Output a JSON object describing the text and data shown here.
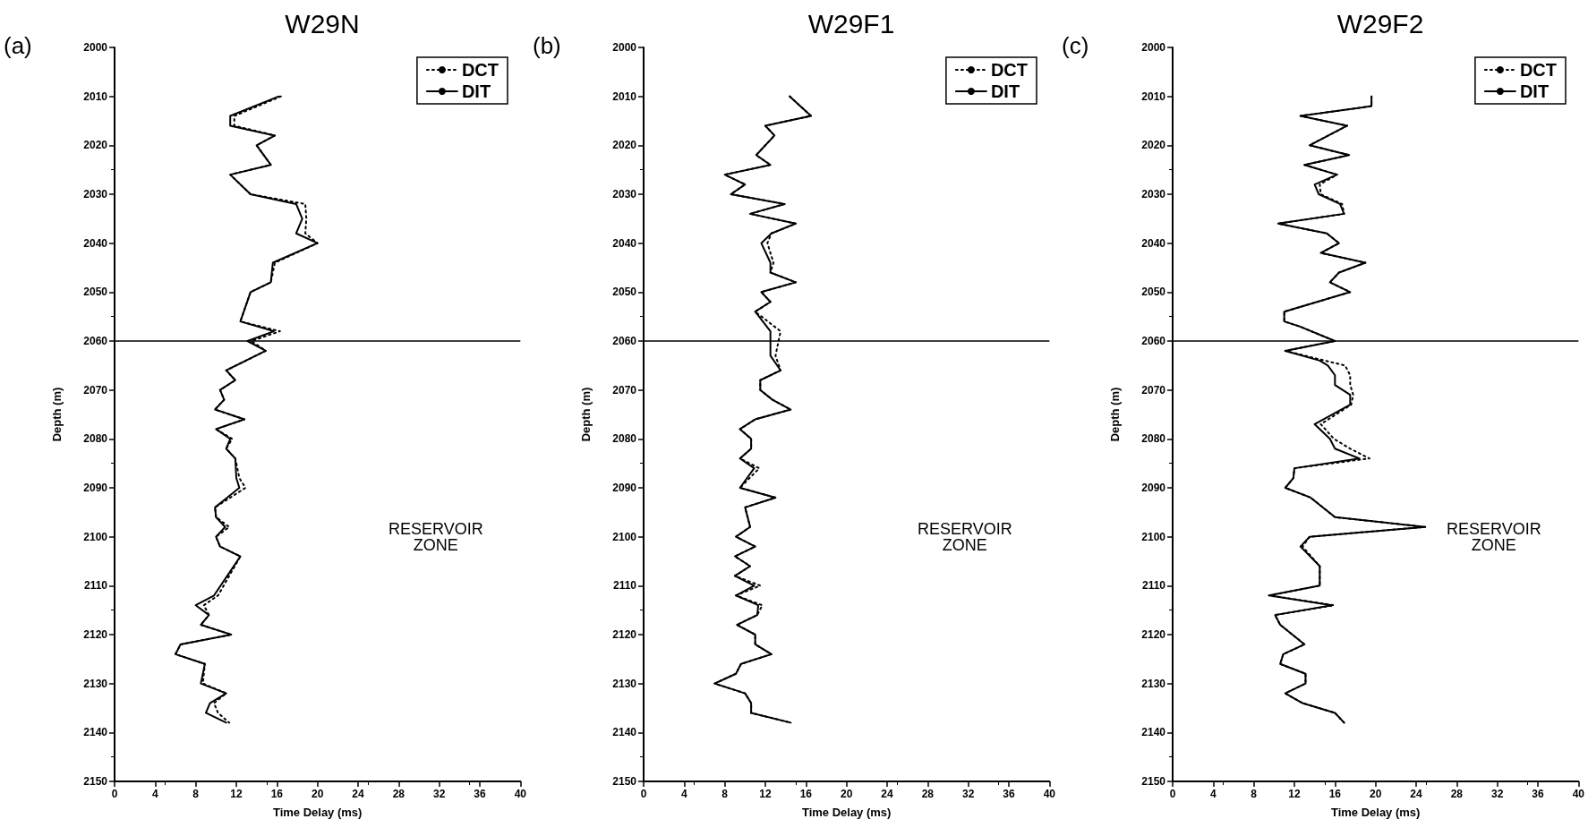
{
  "chart_data": [
    {
      "type": "line",
      "title": "W29N",
      "xlabel": "Time Delay (ms)",
      "ylabel": "Depth (m)",
      "orientation": "horizontal",
      "x": [
        2010,
        2014,
        2016,
        2018,
        2020,
        2024,
        2026,
        2030,
        2032,
        2035,
        2038,
        2040,
        2044,
        2048,
        2050,
        2056,
        2058,
        2060,
        2062,
        2066,
        2068,
        2070,
        2072,
        2074,
        2076,
        2078,
        2080,
        2082,
        2084,
        2088,
        2090,
        2094,
        2096,
        2098,
        2100,
        2102,
        2104,
        2112,
        2114,
        2116,
        2118,
        2120,
        2122,
        2124,
        2126,
        2130,
        2132,
        2134,
        2136,
        2138
      ],
      "series": [
        {
          "name": "DCT",
          "color": "#000000",
          "line_style": "dotted",
          "values": [
            16.4,
            11.8,
            11.8,
            15.8,
            14.0,
            15.4,
            11.4,
            13.4,
            18.8,
            18.9,
            18.8,
            20.0,
            15.8,
            15.4,
            13.4,
            12.4,
            16.3,
            13.5,
            14.9,
            11.0,
            11.9,
            10.4,
            10.8,
            9.9,
            12.8,
            10.0,
            11.6,
            11.0,
            11.9,
            12.3,
            12.9,
            9.9,
            10.0,
            11.3,
            10.0,
            10.4,
            12.4,
            10.2,
            8.8,
            9.3,
            8.5,
            11.5,
            6.5,
            6.0,
            8.9,
            8.7,
            11.0,
            9.8,
            10.2,
            11.3
          ]
        },
        {
          "name": "DIT",
          "color": "#000000",
          "line_style": "solid",
          "values": [
            16.2,
            11.4,
            11.4,
            15.8,
            14.0,
            15.4,
            11.4,
            13.4,
            17.9,
            18.5,
            17.9,
            20.0,
            15.6,
            15.4,
            13.4,
            12.4,
            15.7,
            13.1,
            14.9,
            11.0,
            11.9,
            10.4,
            10.8,
            9.9,
            12.8,
            10.0,
            11.4,
            11.0,
            11.9,
            12.0,
            12.3,
            9.9,
            10.0,
            10.9,
            10.0,
            10.4,
            12.4,
            9.8,
            8.0,
            9.3,
            8.5,
            11.5,
            6.5,
            6.0,
            8.9,
            8.5,
            11.0,
            9.4,
            9.0,
            11.0
          ]
        }
      ],
      "xlim": [
        0,
        40
      ],
      "xticks": [
        0,
        4,
        8,
        12,
        16,
        20,
        24,
        28,
        32,
        36,
        40
      ],
      "ylim": [
        2150,
        2000
      ],
      "yticks": [
        2000,
        2010,
        2020,
        2030,
        2040,
        2050,
        2060,
        2070,
        2080,
        2090,
        2100,
        2110,
        2120,
        2130,
        2140,
        2150
      ],
      "ref_lines": [
        {
          "axis": "y",
          "value": 2060,
          "color": "#000000"
        }
      ],
      "annotations": [
        "(a)",
        "RESERVOIR\nZONE"
      ],
      "legend": "top right",
      "marker": "none",
      "grid": false
    },
    {
      "type": "line",
      "title": "W29F1",
      "xlabel": "Time Delay (ms)",
      "ylabel": "Depth (m)",
      "orientation": "horizontal",
      "x": [
        2010,
        2014,
        2016,
        2018,
        2022,
        2024,
        2026,
        2028,
        2030,
        2032,
        2034,
        2036,
        2038,
        2040,
        2044,
        2046,
        2048,
        2050,
        2052,
        2054,
        2058,
        2063,
        2066,
        2068,
        2070,
        2072,
        2074,
        2076,
        2078,
        2080,
        2082,
        2084,
        2086,
        2090,
        2092,
        2094,
        2098,
        2100,
        2102,
        2104,
        2106,
        2108,
        2110,
        2112,
        2114,
        2116,
        2118,
        2120,
        2122,
        2124,
        2126,
        2128,
        2130,
        2132,
        2134,
        2136,
        2138
      ],
      "series": [
        {
          "name": "DCT",
          "color": "#000000",
          "line_style": "dotted",
          "values": [
            14.4,
            16.5,
            12.0,
            12.9,
            11.1,
            12.5,
            8.0,
            10.0,
            8.6,
            13.9,
            10.5,
            15.0,
            12.6,
            12.2,
            12.8,
            12.5,
            15.0,
            11.6,
            12.5,
            11.0,
            13.5,
            13.0,
            13.5,
            11.5,
            11.5,
            12.7,
            14.5,
            11.0,
            9.5,
            10.6,
            10.6,
            9.5,
            11.4,
            9.5,
            13.0,
            10.0,
            10.5,
            9.1,
            11.0,
            9.0,
            10.5,
            9.0,
            11.5,
            9.1,
            11.7,
            11.2,
            9.2,
            11.0,
            11.0,
            12.6,
            9.6,
            9.1,
            7.0,
            10.0,
            10.6,
            10.6,
            14.5
          ]
        },
        {
          "name": "DIT",
          "color": "#000000",
          "line_style": "solid",
          "values": [
            14.4,
            16.5,
            12.0,
            12.9,
            11.1,
            12.5,
            8.0,
            10.0,
            8.6,
            13.9,
            10.5,
            15.0,
            12.6,
            11.6,
            12.5,
            12.5,
            15.0,
            11.6,
            12.5,
            11.0,
            12.5,
            12.5,
            13.5,
            11.5,
            11.5,
            12.7,
            14.5,
            11.0,
            9.5,
            10.6,
            10.6,
            9.5,
            10.9,
            9.5,
            13.0,
            10.0,
            10.5,
            9.1,
            11.0,
            9.0,
            10.5,
            9.0,
            10.9,
            9.1,
            11.3,
            11.2,
            9.2,
            11.0,
            11.0,
            12.6,
            9.6,
            9.1,
            7.0,
            10.0,
            10.6,
            10.6,
            14.5
          ]
        }
      ],
      "xlim": [
        0,
        40
      ],
      "xticks": [
        0,
        4,
        8,
        12,
        16,
        20,
        24,
        28,
        32,
        36,
        40
      ],
      "ylim": [
        2150,
        2000
      ],
      "yticks": [
        2000,
        2010,
        2020,
        2030,
        2040,
        2050,
        2060,
        2070,
        2080,
        2090,
        2100,
        2110,
        2120,
        2130,
        2140,
        2150
      ],
      "ref_lines": [
        {
          "axis": "y",
          "value": 2060,
          "color": "#000000"
        }
      ],
      "annotations": [
        "(b)",
        "RESERVOIR\nZONE"
      ],
      "legend": "top right",
      "marker": "none",
      "grid": false
    },
    {
      "type": "line",
      "title": "W29F2",
      "xlabel": "Time Delay (ms)",
      "ylabel": "Depth (m)",
      "orientation": "horizontal",
      "x": [
        2010,
        2012,
        2014,
        2016,
        2020,
        2022,
        2024,
        2026,
        2028,
        2030,
        2032,
        2034,
        2036,
        2038,
        2040,
        2042,
        2044,
        2046,
        2048,
        2050,
        2054,
        2056,
        2057,
        2060,
        2062,
        2064,
        2065,
        2067,
        2069,
        2071,
        2073,
        2077,
        2080,
        2082,
        2084,
        2086,
        2088,
        2090,
        2092,
        2096,
        2098,
        2100,
        2102,
        2106,
        2110,
        2112,
        2114,
        2116,
        2118,
        2122,
        2124,
        2126,
        2128,
        2130,
        2132,
        2134,
        2136,
        2138
      ],
      "series": [
        {
          "name": "DCT",
          "color": "#000000",
          "line_style": "dotted",
          "values": [
            19.6,
            19.6,
            12.6,
            17.2,
            13.5,
            17.4,
            13.0,
            16.2,
            14.5,
            14.6,
            16.7,
            16.9,
            10.4,
            15.2,
            16.4,
            14.6,
            19.0,
            16.4,
            15.5,
            17.5,
            11.0,
            11.0,
            12.5,
            16.0,
            11.1,
            15.0,
            17.0,
            17.5,
            17.5,
            17.8,
            17.6,
            14.6,
            15.9,
            17.5,
            19.4,
            12.0,
            11.9,
            11.1,
            13.6,
            16.0,
            24.9,
            13.5,
            12.8,
            14.5,
            14.5,
            9.5,
            15.9,
            10.1,
            10.6,
            13.0,
            10.9,
            10.6,
            13.1,
            13.1,
            11.1,
            12.8,
            16.0,
            16.9
          ]
        },
        {
          "name": "DIT",
          "color": "#000000",
          "line_style": "solid",
          "values": [
            19.6,
            19.6,
            12.6,
            17.2,
            13.5,
            17.4,
            13.0,
            16.2,
            14.0,
            14.4,
            16.5,
            16.9,
            10.4,
            15.2,
            16.4,
            14.6,
            19.0,
            16.4,
            15.5,
            17.5,
            11.0,
            11.0,
            12.5,
            16.0,
            11.1,
            14.5,
            15.3,
            16.0,
            16.0,
            17.5,
            17.5,
            14.0,
            15.5,
            16.0,
            18.4,
            12.0,
            11.9,
            11.1,
            13.6,
            16.0,
            24.9,
            13.5,
            12.6,
            14.5,
            14.5,
            9.5,
            15.7,
            10.1,
            10.6,
            13.0,
            10.9,
            10.6,
            13.1,
            13.1,
            11.1,
            12.8,
            16.0,
            16.9
          ]
        }
      ],
      "xlim": [
        0,
        40
      ],
      "xticks": [
        0,
        4,
        8,
        12,
        16,
        20,
        24,
        28,
        32,
        36,
        40
      ],
      "ylim": [
        2150,
        2000
      ],
      "yticks": [
        2000,
        2010,
        2020,
        2030,
        2040,
        2050,
        2060,
        2070,
        2080,
        2090,
        2100,
        2110,
        2120,
        2130,
        2140,
        2150
      ],
      "ref_lines": [
        {
          "axis": "y",
          "value": 2060,
          "color": "#000000"
        }
      ],
      "annotations": [
        "(c)",
        "RESERVOIR\nZONE"
      ],
      "legend": "top right",
      "marker": "none",
      "grid": false
    }
  ]
}
